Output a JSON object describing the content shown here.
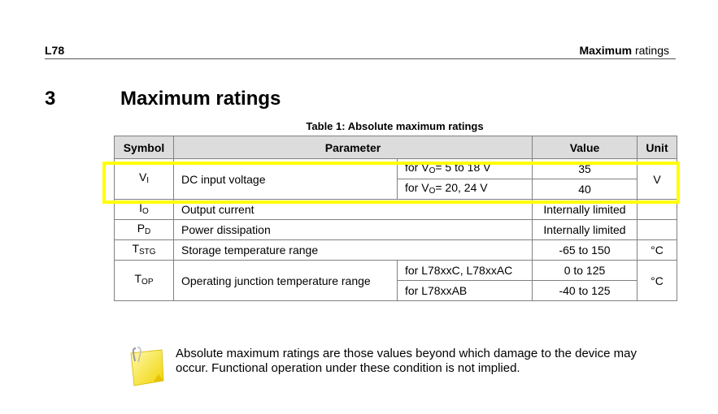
{
  "header": {
    "left": "L78",
    "right_bold": "Maximum",
    "right_rest": " ratings"
  },
  "section": {
    "number": "3",
    "title": "Maximum ratings"
  },
  "table": {
    "caption": "Table 1: Absolute maximum ratings",
    "columns": {
      "symbol": "Symbol",
      "parameter": "Parameter",
      "value": "Value",
      "unit": "Unit"
    },
    "rows": {
      "vi": {
        "symbol_main": "V",
        "symbol_sub": "I",
        "parameter": "DC input voltage",
        "cond1_pre": "for V",
        "cond1_sub": "O",
        "cond1_post": "= 5 to 18 V",
        "value1": "35",
        "cond2_pre": "for V",
        "cond2_sub": "O",
        "cond2_post": "= 20, 24 V",
        "value2": "40",
        "unit": "V"
      },
      "io": {
        "symbol_main": "I",
        "symbol_sub": "O",
        "parameter": "Output current",
        "value": "Internally limited",
        "unit": ""
      },
      "pd": {
        "symbol_main": "P",
        "symbol_sub": "D",
        "parameter": "Power dissipation",
        "value": "Internally limited",
        "unit": ""
      },
      "tstg": {
        "symbol_main": "T",
        "symbol_sub": "STG",
        "parameter": "Storage temperature range",
        "value": "-65 to 150",
        "unit": "°C"
      },
      "top": {
        "symbol_main": "T",
        "symbol_sub": "OP",
        "parameter": "Operating junction temperature range",
        "cond1": "for L78xxC, L78xxAC",
        "value1": "0 to 125",
        "cond2": "for L78xxAB",
        "value2": "-40 to 125",
        "unit": "°C"
      }
    }
  },
  "note": {
    "icon": "sticky-note-icon",
    "text": "Absolute maximum ratings are those values beyond which damage to the device may occur. Functional operation under these condition is not implied."
  },
  "colors": {
    "highlight": "#ffff00",
    "header_fill": "#dcdcdc",
    "grid": "#808080"
  }
}
